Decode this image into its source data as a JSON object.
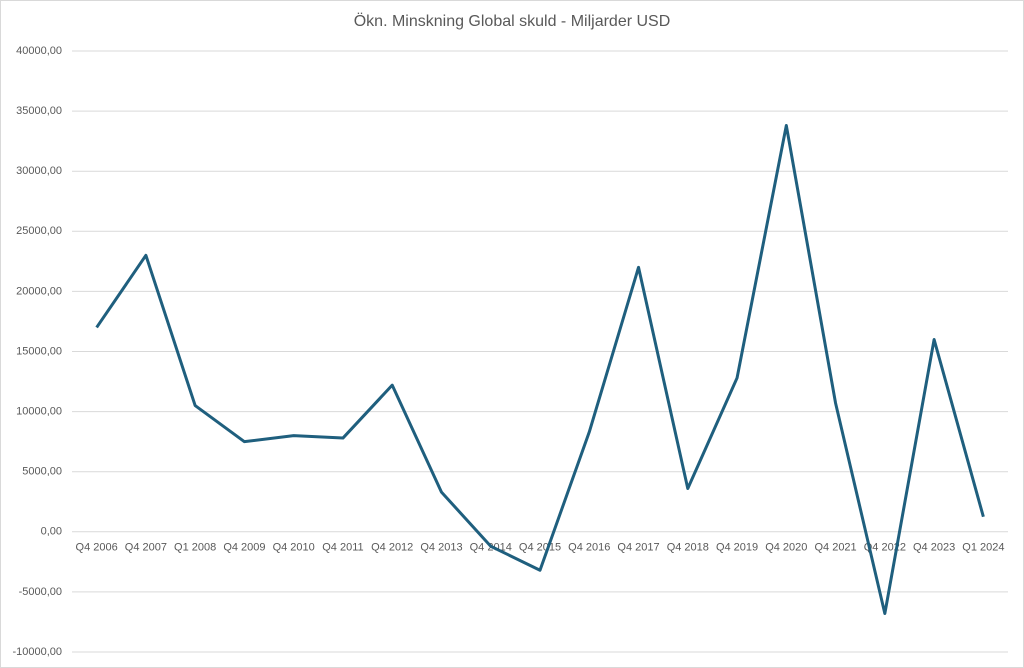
{
  "chart_data": {
    "type": "line",
    "title": "Ökn. Minskning Global skuld - Miljarder USD",
    "categories": [
      "Q4 2006",
      "Q4 2007",
      "Q1 2008",
      "Q4 2009",
      "Q4 2010",
      "Q4 2011",
      "Q4 2012",
      "Q4 2013",
      "Q4 2014",
      "Q4 2015",
      "Q4 2016",
      "Q4 2017",
      "Q4 2018",
      "Q4 2019",
      "Q4 2020",
      "Q4 2021",
      "Q4 2022",
      "Q4 2023",
      "Q1 2024"
    ],
    "values": [
      17000,
      23000,
      10500,
      7500,
      8000,
      7800,
      12200,
      3300,
      -1200,
      -3200,
      8300,
      22000,
      3600,
      12800,
      33800,
      10700,
      -6800,
      16000,
      1250
    ],
    "color": "#1f5f7e",
    "ylim": [
      -10000,
      40000
    ],
    "yticks": [
      {
        "value": -10000,
        "label": "-10000,00"
      },
      {
        "value": -5000,
        "label": "-5000,00"
      },
      {
        "value": 0,
        "label": "0,00"
      },
      {
        "value": 5000,
        "label": "5000,00"
      },
      {
        "value": 10000,
        "label": "10000,00"
      },
      {
        "value": 15000,
        "label": "15000,00"
      },
      {
        "value": 20000,
        "label": "20000,00"
      },
      {
        "value": 25000,
        "label": "25000,00"
      },
      {
        "value": 30000,
        "label": "30000,00"
      },
      {
        "value": 35000,
        "label": "35000,00"
      },
      {
        "value": 40000,
        "label": "40000,00"
      }
    ],
    "grid": true
  }
}
